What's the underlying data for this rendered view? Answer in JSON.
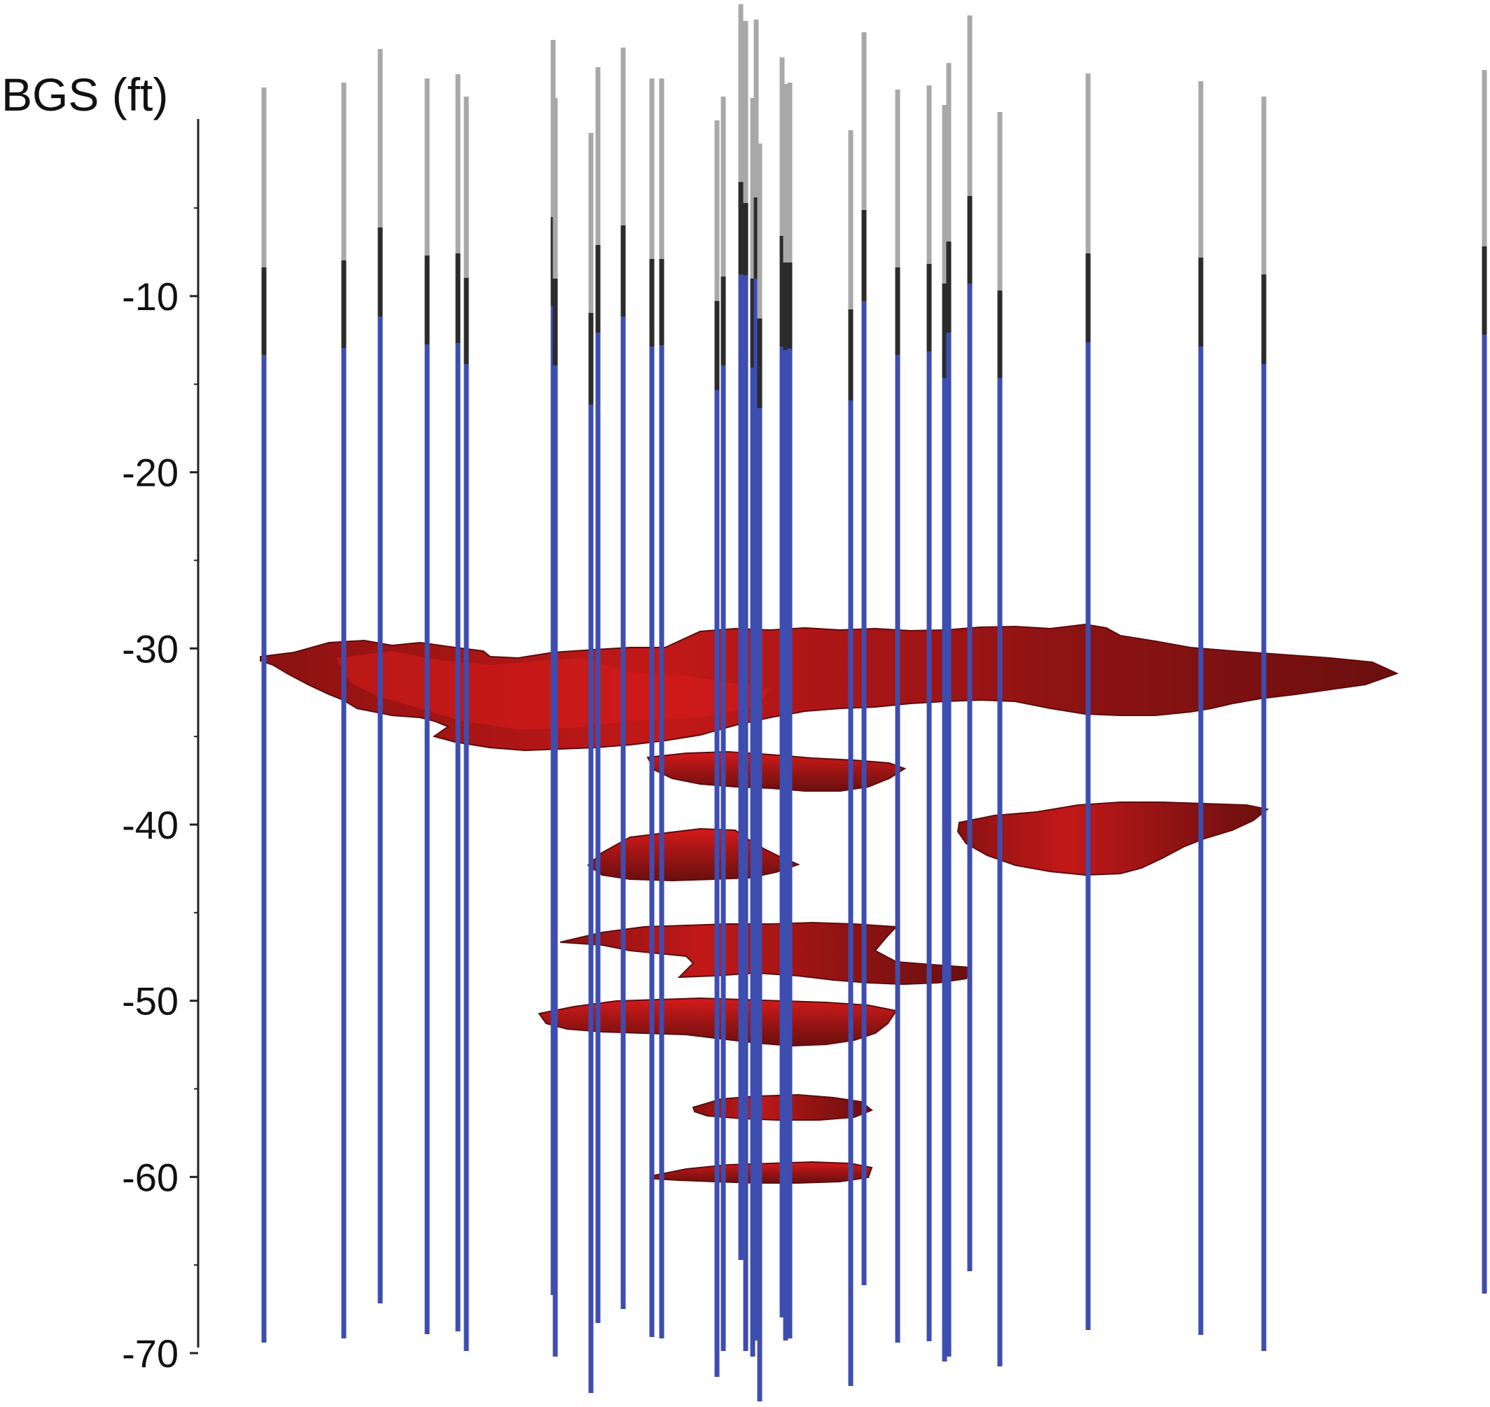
{
  "axis": {
    "title": "BGS (ft)",
    "ticks": [
      {
        "value": -10,
        "label": "-10"
      },
      {
        "value": -20,
        "label": "-20"
      },
      {
        "value": -30,
        "label": "-30"
      },
      {
        "value": -40,
        "label": "-40"
      },
      {
        "value": -50,
        "label": "-50"
      },
      {
        "value": -60,
        "label": "-60"
      },
      {
        "value": -70,
        "label": "-70"
      }
    ],
    "minor_step": 5,
    "range": [
      -70,
      0
    ]
  },
  "colors": {
    "casing_riser": "#a8a8a8",
    "grout_seal": "#2b2b2b",
    "screen": "#3d4db0",
    "plume_dark": "#6b0f0f",
    "plume_mid": "#9c1414",
    "plume_light": "#d61a1a",
    "axis": "#222222"
  }
}
